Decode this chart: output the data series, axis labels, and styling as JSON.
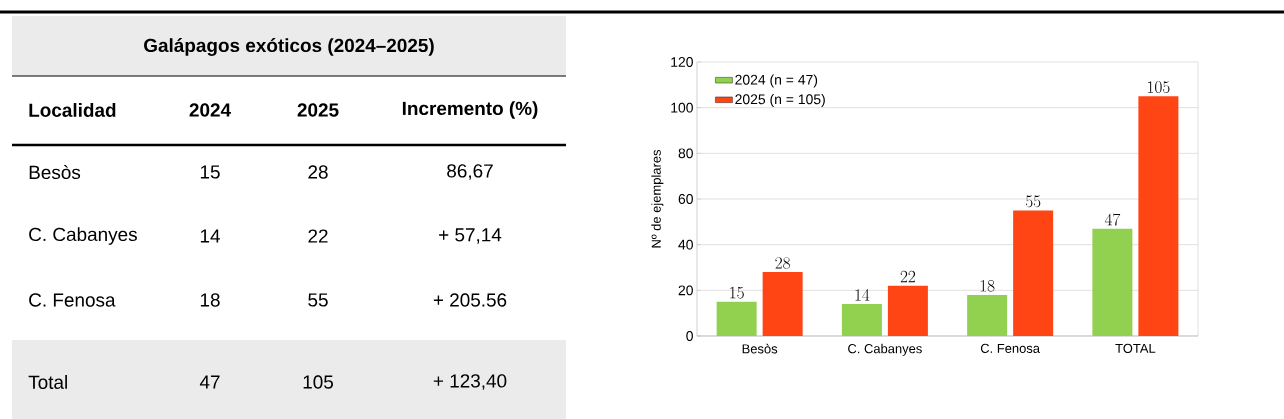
{
  "chart_data": [
    {
      "type": "other",
      "title": "Galápagos exóticos (2024–2025)",
      "annotations": [
        "Localidad",
        "2024",
        "2025",
        "Incremento (%)",
        "Besòs",
        "15",
        "28",
        "86,67",
        "C. Cabanyes",
        "14",
        "22",
        "+ 57,14",
        "C. Fenosa",
        "18",
        "55",
        "+ 205.56",
        "Total",
        "47",
        "105",
        "+ 123,40"
      ]
    },
    {
      "type": "bar",
      "ylabel": "Nº de ejemplares",
      "categories": [
        "Besòs",
        "C. Cabanyes",
        "C. Fenosa",
        "TOTAL"
      ],
      "series": [
        {
          "name": "2024 (n = 47)",
          "color": "#92d050",
          "values": [
            15,
            14,
            18,
            47
          ]
        },
        {
          "name": "2025 (n = 105)",
          "color": "#ff4514",
          "values": [
            28,
            22,
            55,
            105
          ]
        }
      ],
      "ylim": [
        0,
        120
      ],
      "yticks": [
        0,
        20,
        40,
        60,
        80,
        100,
        120
      ],
      "grid": "y",
      "legend": "top left",
      "data_labels": true
    }
  ]
}
